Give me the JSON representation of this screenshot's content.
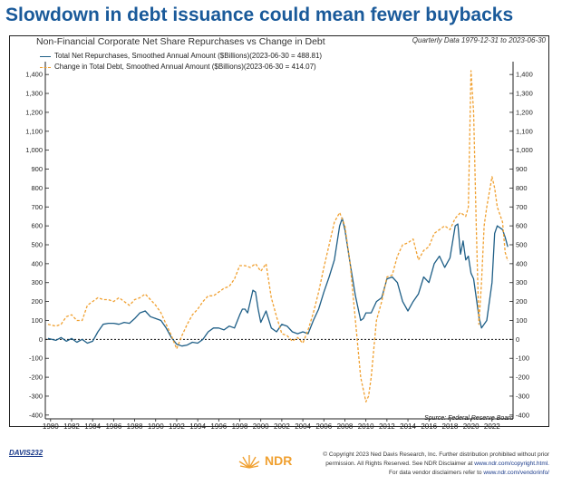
{
  "headline": "Slowdown in debt issuance could mean fewer buybacks",
  "subtitle": "Non-Financial Corporate Net Share Repurchases vs Change in Debt",
  "period": "Quarterly Data 1979-12-31 to 2023-06-30",
  "source": "Source:  Federal Reserve Board",
  "footer": {
    "code": "DAVIS232",
    "logo_text": "NDR",
    "copyright_lines": [
      "© Copyright 2023 Ned Davis Research, Inc. Further distribution prohibited without prior",
      "permission. All Rights Reserved. See NDR Disclaimer at",
      "For data vendor disclaimers refer to"
    ],
    "copyright_links": [
      "www.ndr.com/copyright.html.",
      "www.ndr.com/vendorinfo/"
    ]
  },
  "colors": {
    "headline": "#1a5a9a",
    "series_repurchases": "#1f5f87",
    "series_debt": "#f0a030"
  },
  "chart_data": {
    "type": "line",
    "xlim": [
      1979.5,
      2024
    ],
    "ylim": [
      -420,
      1420
    ],
    "grid": false,
    "zero_line": "dotted",
    "legend_position": "top-left",
    "x_ticks": [
      "1980",
      "1982",
      "1984",
      "1986",
      "1988",
      "1990",
      "1992",
      "1994",
      "1996",
      "1998",
      "2000",
      "2002",
      "2004",
      "2006",
      "2008",
      "2010",
      "2012",
      "2014",
      "2016",
      "2018",
      "2020",
      "2022"
    ],
    "y_ticks": [
      "-400",
      "-300",
      "-200",
      "-100",
      "0",
      "100",
      "200",
      "300",
      "400",
      "500",
      "600",
      "700",
      "800",
      "900",
      "1,000",
      "1,100",
      "1,200",
      "1,300",
      "1,400"
    ],
    "series": [
      {
        "name": "Total Net Repurchases, Smoothed Annual Amount ($Billions)(2023-06-30 = 488.81)",
        "style": "solid",
        "x": [
          1979.75,
          1980.5,
          1981,
          1981.5,
          1982,
          1982.5,
          1983,
          1983.5,
          1984,
          1984.5,
          1985,
          1985.5,
          1986,
          1986.5,
          1987,
          1987.5,
          1988,
          1988.5,
          1989,
          1989.5,
          1990,
          1990.5,
          1991,
          1991.5,
          1992,
          1992.5,
          1993,
          1993.5,
          1994,
          1994.5,
          1995,
          1995.5,
          1996,
          1996.5,
          1997,
          1997.5,
          1998,
          1998.25,
          1998.5,
          1998.75,
          1999,
          1999.25,
          1999.5,
          1999.75,
          2000,
          2000.5,
          2001,
          2001.5,
          2002,
          2002.5,
          2003,
          2003.5,
          2004,
          2004.5,
          2005,
          2005.5,
          2006,
          2006.5,
          2007,
          2007.5,
          2007.75,
          2008,
          2008.5,
          2009,
          2009.5,
          2009.75,
          2010,
          2010.5,
          2011,
          2011.5,
          2012,
          2012.5,
          2013,
          2013.5,
          2014,
          2014.5,
          2015,
          2015.5,
          2016,
          2016.5,
          2017,
          2017.5,
          2018,
          2018.5,
          2018.75,
          2019,
          2019.25,
          2019.5,
          2019.75,
          2020,
          2020.25,
          2020.5,
          2020.75,
          2021,
          2021.5,
          2022,
          2022.25,
          2022.5,
          2023,
          2023.25,
          2023.5
        ],
        "y": [
          5,
          -5,
          10,
          -10,
          5,
          -15,
          0,
          -20,
          -10,
          40,
          80,
          85,
          85,
          80,
          90,
          85,
          110,
          140,
          150,
          120,
          110,
          100,
          60,
          10,
          -25,
          -35,
          -30,
          -15,
          -20,
          0,
          40,
          60,
          60,
          50,
          70,
          60,
          130,
          160,
          160,
          140,
          200,
          260,
          250,
          160,
          90,
          150,
          60,
          40,
          80,
          70,
          40,
          30,
          40,
          30,
          100,
          160,
          250,
          330,
          420,
          600,
          640,
          580,
          400,
          230,
          100,
          110,
          140,
          140,
          200,
          220,
          320,
          330,
          300,
          200,
          150,
          200,
          240,
          330,
          300,
          400,
          440,
          380,
          430,
          600,
          610,
          450,
          520,
          420,
          440,
          350,
          320,
          220,
          120,
          60,
          100,
          300,
          560,
          600,
          580,
          540,
          489
        ]
      },
      {
        "name": "Change in Total Debt, Smoothed Annual Amount ($Billions)(2023-06-30 = 414.07)",
        "style": "dashed",
        "x": [
          1979.75,
          1980.5,
          1981,
          1981.5,
          1982,
          1982.5,
          1983,
          1983.5,
          1984,
          1984.5,
          1985,
          1985.5,
          1986,
          1986.5,
          1987,
          1987.5,
          1988,
          1988.5,
          1989,
          1989.5,
          1990,
          1990.5,
          1991,
          1991.5,
          1992,
          1992.5,
          1993,
          1993.5,
          1994,
          1994.5,
          1995,
          1995.5,
          1996,
          1996.5,
          1997,
          1997.5,
          1998,
          1998.5,
          1999,
          1999.5,
          2000,
          2000.5,
          2001,
          2001.5,
          2002,
          2002.5,
          2003,
          2003.5,
          2004,
          2004.5,
          2005,
          2005.5,
          2006,
          2006.5,
          2007,
          2007.5,
          2008,
          2008.5,
          2009,
          2009.5,
          2010,
          2010.25,
          2010.5,
          2011,
          2011.5,
          2012,
          2012.5,
          2013,
          2013.5,
          2014,
          2014.5,
          2015,
          2015.5,
          2016,
          2016.5,
          2017,
          2017.5,
          2018,
          2018.5,
          2019,
          2019.5,
          2019.75,
          2020,
          2020.25,
          2020.5,
          2020.75,
          2021,
          2021.25,
          2021.5,
          2022,
          2022.25,
          2022.5,
          2023,
          2023.25,
          2023.5
        ],
        "y": [
          80,
          70,
          80,
          120,
          130,
          100,
          100,
          180,
          200,
          220,
          210,
          210,
          200,
          220,
          200,
          180,
          210,
          220,
          240,
          210,
          180,
          140,
          80,
          20,
          -50,
          20,
          80,
          130,
          160,
          200,
          230,
          230,
          250,
          270,
          280,
          320,
          390,
          390,
          380,
          400,
          360,
          400,
          220,
          120,
          30,
          20,
          -10,
          10,
          -20,
          50,
          140,
          250,
          380,
          500,
          620,
          670,
          600,
          400,
          100,
          -200,
          -330,
          -300,
          -200,
          100,
          200,
          330,
          340,
          440,
          500,
          510,
          530,
          420,
          470,
          490,
          560,
          580,
          600,
          580,
          640,
          670,
          650,
          700,
          1420,
          1200,
          600,
          80,
          300,
          600,
          700,
          860,
          800,
          700,
          620,
          460,
          414
        ]
      }
    ]
  }
}
